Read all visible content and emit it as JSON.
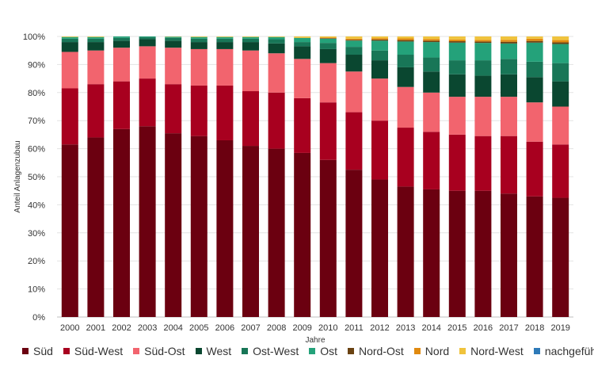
{
  "chart_data": {
    "type": "bar",
    "stacked": true,
    "title": "",
    "xlabel": "Jahre",
    "ylabel": "Anteil Anlagenzubau",
    "ylim": [
      0,
      100
    ],
    "yticks": [
      "0%",
      "10%",
      "20%",
      "30%",
      "40%",
      "50%",
      "60%",
      "70%",
      "80%",
      "90%",
      "100%"
    ],
    "categories": [
      "2000",
      "2001",
      "2002",
      "2003",
      "2004",
      "2005",
      "2006",
      "2007",
      "2008",
      "2009",
      "2010",
      "2011",
      "2012",
      "2013",
      "2014",
      "2015",
      "2016",
      "2017",
      "2018",
      "2019"
    ],
    "series": [
      {
        "name": "Süd",
        "color": "#6b0010",
        "values": [
          61.5,
          64,
          67,
          68,
          65.5,
          64.5,
          63,
          61,
          60,
          58.5,
          56,
          52.5,
          49,
          46.5,
          45.5,
          45,
          45,
          44,
          43,
          42.5
        ]
      },
      {
        "name": "Süd-West",
        "color": "#a8001f",
        "values": [
          20,
          19,
          17,
          17,
          17.5,
          18,
          19.5,
          19.5,
          20,
          19.5,
          20.5,
          20.5,
          21,
          21,
          20.5,
          20,
          19.5,
          20.5,
          19.5,
          19
        ]
      },
      {
        "name": "Süd-Ost",
        "color": "#f2646e",
        "values": [
          13,
          12,
          12,
          11.5,
          13,
          13,
          13,
          14.5,
          14,
          14,
          14,
          14.5,
          15,
          14.5,
          14,
          13.5,
          14,
          14,
          14,
          13.5
        ]
      },
      {
        "name": "West",
        "color": "#0a4730",
        "values": [
          3.5,
          3,
          2.5,
          2.5,
          2.5,
          2.5,
          2.5,
          3,
          3.5,
          4.5,
          5,
          6,
          6.5,
          7,
          7.5,
          8,
          7.5,
          8,
          9,
          9
        ]
      },
      {
        "name": "Ost-West",
        "color": "#187657",
        "values": [
          1.2,
          1.2,
          1,
          0.7,
          1,
          1.2,
          1.2,
          1.2,
          1.5,
          1.5,
          2.2,
          2.8,
          3.5,
          4.5,
          5,
          5,
          5.5,
          5.5,
          5.5,
          6.5
        ]
      },
      {
        "name": "Ost",
        "color": "#24a27a",
        "values": [
          0.6,
          0.6,
          0.5,
          0.3,
          0.4,
          0.6,
          0.6,
          0.6,
          0.8,
          1.5,
          1.5,
          2.2,
          3.5,
          4.7,
          5.5,
          6.3,
          6.2,
          5.5,
          6.8,
          6.8
        ]
      },
      {
        "name": "Nord-Ost",
        "color": "#6a4212",
        "values": [
          0,
          0,
          0,
          0,
          0,
          0,
          0,
          0,
          0,
          0,
          0.2,
          0.3,
          0.4,
          0.5,
          0.5,
          0.5,
          0.5,
          0.6,
          0.6,
          0.6
        ]
      },
      {
        "name": "Nord",
        "color": "#e08a10",
        "values": [
          0,
          0,
          0,
          0,
          0,
          0,
          0,
          0,
          0,
          0,
          0.2,
          0.4,
          0.5,
          0.6,
          0.6,
          0.6,
          0.6,
          0.7,
          0.8,
          0.8
        ]
      },
      {
        "name": "Nord-West",
        "color": "#f0c33c",
        "values": [
          0.2,
          0.2,
          0,
          0,
          0.1,
          0.2,
          0.2,
          0.2,
          0.2,
          0.5,
          0.4,
          0.8,
          0.6,
          0.7,
          0.9,
          1.1,
          1.2,
          1.2,
          0.8,
          1.3
        ]
      },
      {
        "name": "nachgeführt",
        "color": "#2e7ab8",
        "values": [
          0,
          0,
          0,
          0,
          0,
          0,
          0,
          0,
          0,
          0,
          0,
          0,
          0,
          0,
          0,
          0,
          0,
          0,
          0,
          0
        ]
      }
    ]
  }
}
